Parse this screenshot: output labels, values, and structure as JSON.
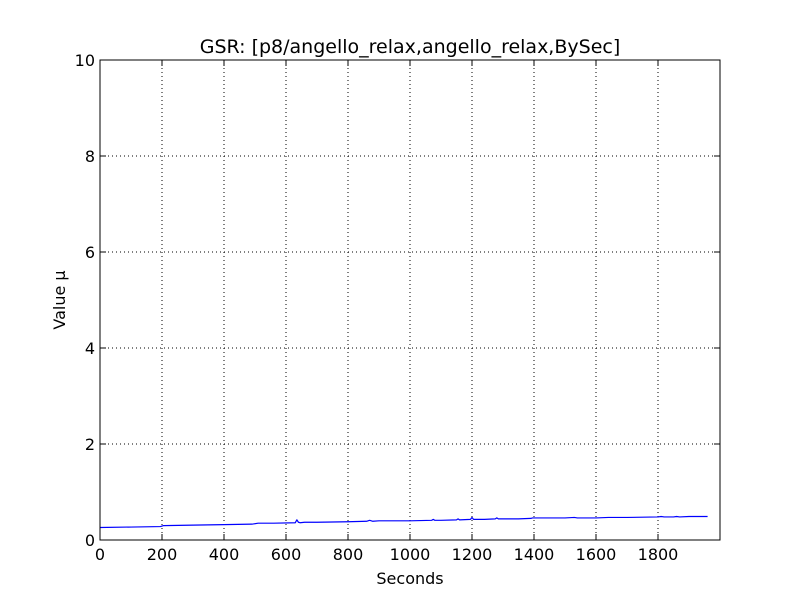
{
  "chart_data": {
    "type": "line",
    "title": "GSR: [p8/angello_relax,angello_relax,BySec]",
    "xlabel": "Seconds",
    "ylabel": "Value µ",
    "xlim": [
      0,
      2000
    ],
    "ylim": [
      0,
      10
    ],
    "x_ticks": [
      "0",
      "200",
      "400",
      "600",
      "800",
      "1000",
      "1200",
      "1400",
      "1600",
      "1800"
    ],
    "y_ticks": [
      "0",
      "2",
      "4",
      "6",
      "8",
      "10"
    ],
    "grid": true,
    "line_color": "#0000ff",
    "series": [
      {
        "x": [
          0,
          100,
          195,
          205,
          300,
          400,
          490,
          510,
          560,
          630,
          635,
          640,
          645,
          660,
          700,
          800,
          860,
          870,
          880,
          900,
          1000,
          1070,
          1075,
          1080,
          1100,
          1150,
          1155,
          1160,
          1195,
          1200,
          1205,
          1240,
          1275,
          1280,
          1285,
          1350,
          1390,
          1395,
          1450,
          1500,
          1530,
          1540,
          1600,
          1640,
          1700,
          1800,
          1810,
          1820,
          1850,
          1860,
          1870,
          1900,
          1950,
          1960
        ],
        "y": [
          0.26,
          0.27,
          0.28,
          0.3,
          0.31,
          0.32,
          0.33,
          0.35,
          0.35,
          0.36,
          0.42,
          0.37,
          0.36,
          0.37,
          0.37,
          0.38,
          0.39,
          0.41,
          0.39,
          0.4,
          0.4,
          0.41,
          0.43,
          0.41,
          0.41,
          0.42,
          0.44,
          0.42,
          0.43,
          0.47,
          0.43,
          0.43,
          0.44,
          0.46,
          0.44,
          0.44,
          0.45,
          0.46,
          0.46,
          0.46,
          0.47,
          0.46,
          0.46,
          0.47,
          0.47,
          0.48,
          0.49,
          0.48,
          0.48,
          0.49,
          0.48,
          0.49,
          0.49,
          0.49
        ]
      }
    ]
  }
}
